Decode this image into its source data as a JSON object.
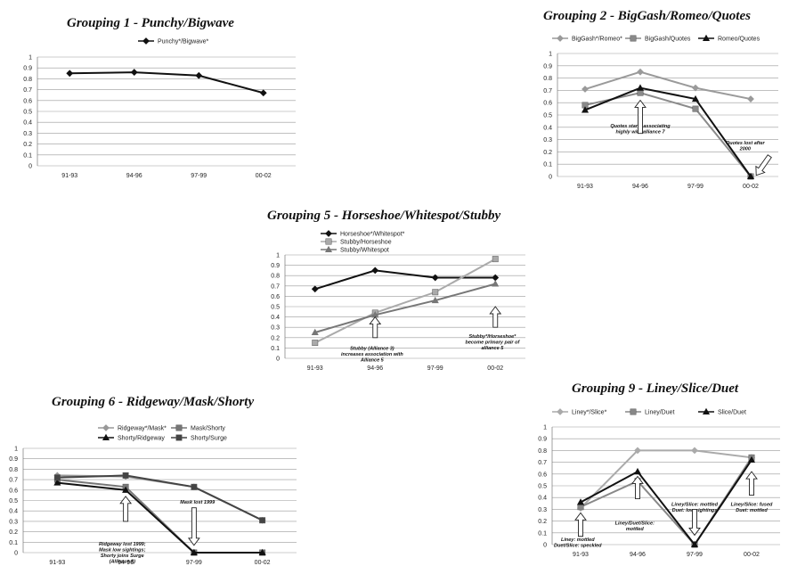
{
  "chart_data": [
    {
      "type": "line",
      "title": "Grouping 1 - Punchy/Bigwave",
      "categories": [
        "91-93",
        "94-96",
        "97-99",
        "00-02"
      ],
      "ylim": [
        0,
        1
      ],
      "yticks": [
        "0",
        "0.1",
        "0.2",
        "0.3",
        "0.4",
        "0.5",
        "0.6",
        "0.7",
        "0.8",
        "0.9",
        "1"
      ],
      "grid": true,
      "legend_position": "top",
      "series": [
        {
          "name": "Punchy*/Bigwave*",
          "values": [
            0.85,
            0.86,
            0.83,
            0.67
          ],
          "color": "#111111",
          "marker": "diamond"
        }
      ],
      "annotations": []
    },
    {
      "type": "line",
      "title": "Grouping 2 - BigGash/Romeo/Quotes",
      "categories": [
        "91-93",
        "94-96",
        "97-99",
        "00-02"
      ],
      "ylim": [
        0,
        1
      ],
      "yticks": [
        "0",
        "0.1",
        "0.2",
        "0.3",
        "0.4",
        "0.5",
        "0.6",
        "0.7",
        "0.8",
        "0.9",
        "1"
      ],
      "grid": true,
      "legend_position": "top",
      "series": [
        {
          "name": "BigGash*/Romeo*",
          "values": [
            0.71,
            0.85,
            0.72,
            0.63
          ],
          "color": "#9a9a9a",
          "marker": "diamond"
        },
        {
          "name": "BigGash/Quotes",
          "values": [
            0.58,
            0.68,
            0.55,
            0
          ],
          "color": "#8a8a8a",
          "marker": "square"
        },
        {
          "name": "Romeo/Quotes",
          "values": [
            0.54,
            0.72,
            0.63,
            0
          ],
          "color": "#111111",
          "marker": "triangle"
        }
      ],
      "annotations": [
        {
          "lines": [
            "Quotes starts associating",
            "highly  with alliance 7"
          ],
          "cat": 1,
          "value": 0.4,
          "arrow": {
            "cat": 1,
            "from": 0.35,
            "to": 0.62
          }
        },
        {
          "lines": [
            "Quotes lost after",
            "2000"
          ],
          "cat": 2.9,
          "value": 0.26,
          "arrow": {
            "cat": 3.1,
            "from": 0.2,
            "to": 0.01,
            "slant": true
          }
        }
      ]
    },
    {
      "type": "line",
      "title": "Grouping 5 - Horseshoe/Whitespot/Stubby",
      "categories": [
        "91-93",
        "94-96",
        "97-99",
        "00-02"
      ],
      "ylim": [
        0,
        1
      ],
      "yticks": [
        "0",
        "0.1",
        "0.2",
        "0.3",
        "0.4",
        "0.5",
        "0.6",
        "0.7",
        "0.8",
        "0.9",
        "1"
      ],
      "grid": true,
      "legend_position": "top-left",
      "series": [
        {
          "name": "Horseshoe*/Whitespot*",
          "values": [
            0.67,
            0.85,
            0.78,
            0.78
          ],
          "color": "#111111",
          "marker": "diamond"
        },
        {
          "name": "Stubby/Horseshoe",
          "values": [
            0.15,
            0.44,
            0.64,
            0.96
          ],
          "color": "#aaaaaa",
          "marker": "square"
        },
        {
          "name": "Stubby/Whitespot",
          "values": [
            0.25,
            0.42,
            0.56,
            0.72
          ],
          "color": "#777777",
          "marker": "triangle"
        }
      ],
      "annotations": [
        {
          "lines": [
            "Stubby (Alliance 3)",
            "increases association with",
            "Alliance 5"
          ],
          "cat": 0.95,
          "value": 0.08,
          "arrow": {
            "cat": 1,
            "from": 0.2,
            "to": 0.4
          }
        },
        {
          "lines": [
            "Stubby*/Horseshoe*",
            "become primary pair of",
            "alliance 5"
          ],
          "cat": 2.95,
          "value": 0.2,
          "arrow": {
            "cat": 3,
            "from": 0.3,
            "to": 0.5
          }
        }
      ]
    },
    {
      "type": "line",
      "title": "Grouping 6 - Ridgeway/Mask/Shorty",
      "categories": [
        "91-93",
        "94-96",
        "97-99",
        "00-02"
      ],
      "ylim": [
        0,
        1
      ],
      "yticks": [
        "0",
        "0.1",
        "0.2",
        "0.3",
        "0.4",
        "0.5",
        "0.6",
        "0.7",
        "0.8",
        "0.9",
        "1"
      ],
      "grid": true,
      "legend_position": "top",
      "series": [
        {
          "name": "Ridgeway*/Mask*",
          "values": [
            0.74,
            0.73,
            0.63,
            0.31
          ],
          "color": "#999999",
          "marker": "diamond"
        },
        {
          "name": "Mask/Shorty",
          "values": [
            0.7,
            0.63,
            0,
            0
          ],
          "color": "#777777",
          "marker": "square"
        },
        {
          "name": "Shorty/Ridgeway",
          "values": [
            0.67,
            0.6,
            0,
            0
          ],
          "color": "#111111",
          "marker": "triangle"
        },
        {
          "name": "Shorty/Surge",
          "values": [
            0.72,
            0.74,
            0.63,
            0.31
          ],
          "color": "#444444",
          "marker": "square"
        }
      ],
      "annotations": [
        {
          "lines": [
            "Ridgeway lost 1999;",
            "Mask low sightings;",
            "Shorty joins Surge",
            "(Alliance 8)"
          ],
          "cat": 0.95,
          "value": 0.07,
          "arrow": {
            "cat": 1,
            "from": 0.3,
            "to": 0.54
          }
        },
        {
          "lines": [
            "Mask lost 1999"
          ],
          "cat": 2.05,
          "value": 0.47,
          "arrow": {
            "cat": 2,
            "from": 0.43,
            "to": 0.07
          }
        }
      ]
    },
    {
      "type": "line",
      "title": "Grouping 9 - Liney/Slice/Duet",
      "categories": [
        "91-93",
        "94-96",
        "97-99",
        "00-02"
      ],
      "ylim": [
        0,
        1
      ],
      "yticks": [
        "0",
        "0.1",
        "0.2",
        "0.3",
        "0.4",
        "0.5",
        "0.6",
        "0.7",
        "0.8",
        "0.9",
        "1"
      ],
      "grid": true,
      "legend_position": "top",
      "series": [
        {
          "name": "Liney*/Slice*",
          "values": [
            0.31,
            0.8,
            0.8,
            0.74
          ],
          "color": "#aaaaaa",
          "marker": "diamond"
        },
        {
          "name": "Liney/Duet",
          "values": [
            0.32,
            0.54,
            0,
            0.74
          ],
          "color": "#888888",
          "marker": "square"
        },
        {
          "name": "Slice/Duet",
          "values": [
            0.36,
            0.62,
            0,
            0.72
          ],
          "color": "#111111",
          "marker": "triangle"
        }
      ],
      "annotations": [
        {
          "lines": [
            "Liney: mottled",
            "Duet/Slice: speckled"
          ],
          "cat": -0.05,
          "value": 0.03,
          "arrow": {
            "cat": 0,
            "from": 0.07,
            "to": 0.27
          }
        },
        {
          "lines": [
            "Liney/Duet/Slice:",
            "mottled"
          ],
          "cat": 0.95,
          "value": 0.17,
          "arrow": {
            "cat": 1,
            "from": 0.39,
            "to": 0.58
          }
        },
        {
          "lines": [
            "Liney/Slice: mottled",
            "Duet: low sightings"
          ],
          "cat": 2,
          "value": 0.33,
          "arrow": {
            "cat": 2,
            "from": 0.3,
            "to": 0.08
          }
        },
        {
          "lines": [
            "Liney/Slice: fused",
            "Duet: mottled"
          ],
          "cat": 3,
          "value": 0.33,
          "arrow": {
            "cat": 3,
            "from": 0.42,
            "to": 0.62
          }
        }
      ]
    }
  ]
}
